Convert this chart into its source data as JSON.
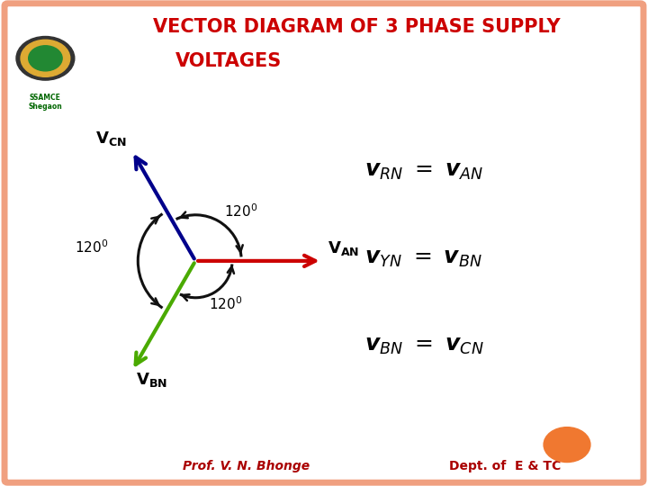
{
  "title_line1": "VECTOR DIAGRAM OF 3 PHASE SUPPLY",
  "title_line2": "VOLTAGES",
  "title_color": "#cc0000",
  "bg_color": "#ffffff",
  "border_color": "#f0a080",
  "footer_left": "Prof. V. N. Bhonge",
  "footer_right": "Dept. of  E & TC",
  "footer_color": "#aa0000",
  "van_color": "#cc0000",
  "vcn_color": "#00008b",
  "vbn_color": "#4aaa00",
  "arrow_lw": 3.0,
  "angle_color": "#111111",
  "eq_fontsize": 18,
  "label_fontsize": 13
}
